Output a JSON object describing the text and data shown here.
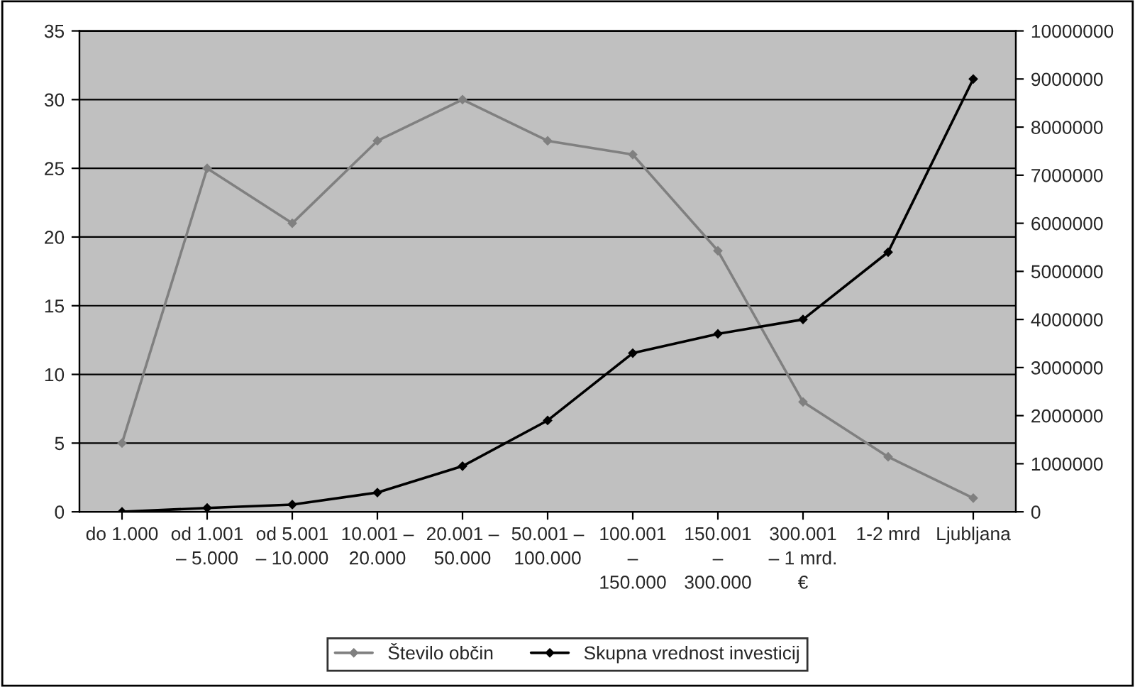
{
  "chart_data": {
    "type": "line",
    "categories": [
      "do 1.000",
      "od 1.001\n– 5.000",
      "od 5.001\n– 10.000",
      "10.001 –\n20.000",
      "20.001 –\n50.000",
      "50.001 –\n100.000",
      "100.001\n–\n150.000",
      "150.001\n–\n300.000",
      "300.001\n– 1 mrd.\n€",
      "1-2 mrd",
      "Ljubljana"
    ],
    "series": [
      {
        "name": "Število občin",
        "color": "#808080",
        "values": [
          5,
          25,
          21,
          27,
          30,
          27,
          26,
          19,
          8,
          4,
          1
        ]
      },
      {
        "name": "Skupna vrednost investicij",
        "color": "#000000",
        "axis": "y2",
        "values": [
          0,
          80000,
          150000,
          400000,
          950000,
          1900000,
          3300000,
          3700000,
          4000000,
          5400000,
          9000000
        ]
      }
    ],
    "ylim": [
      0,
      35
    ],
    "yticks": [
      0,
      5,
      10,
      15,
      20,
      25,
      30,
      35
    ],
    "y2lim": [
      0,
      10000000
    ],
    "y2ticks": [
      0,
      1000000,
      2000000,
      3000000,
      4000000,
      5000000,
      6000000,
      7000000,
      8000000,
      9000000,
      10000000
    ],
    "grid": "y",
    "legend": "bottom",
    "marker": "diamond",
    "line_style": "solid"
  }
}
